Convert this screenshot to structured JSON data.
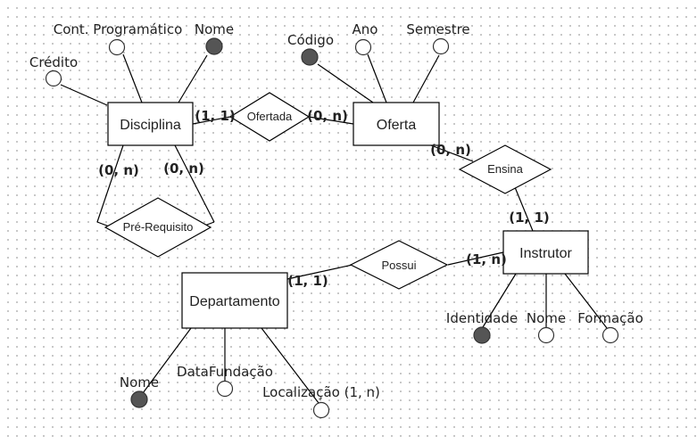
{
  "entities": {
    "disciplina": "Disciplina",
    "oferta": "Oferta",
    "instrutor": "Instrutor",
    "departamento": "Departamento"
  },
  "relationships": {
    "ofertada": "Ofertada",
    "ensina": "Ensina",
    "pre_requisito": "Pré-Requisito",
    "possui": "Possui"
  },
  "attributes": {
    "disciplina_credito": {
      "label": "Crédito",
      "key": false
    },
    "disciplina_conteudo": {
      "label": "Cont. Programático",
      "key": false
    },
    "disciplina_nome": {
      "label": "Nome",
      "key": true
    },
    "oferta_codigo": {
      "label": "Código",
      "key": true
    },
    "oferta_ano": {
      "label": "Ano",
      "key": false
    },
    "oferta_semestre": {
      "label": "Semestre",
      "key": false
    },
    "instrutor_identidade": {
      "label": "Identidade",
      "key": true
    },
    "instrutor_nome": {
      "label": "Nome",
      "key": false
    },
    "instrutor_formacao": {
      "label": "Formação",
      "key": false
    },
    "departamento_nome": {
      "label": "Nome",
      "key": true
    },
    "departamento_datafundacao": {
      "label": "DataFundação",
      "key": false
    },
    "departamento_localizacao": {
      "label": "Localização (1, n)",
      "key": false
    }
  },
  "cardinalities": {
    "disciplina_ofertada": "(1, 1)",
    "ofertada_oferta": "(0, n)",
    "oferta_ensina": "(0, n)",
    "ensina_instrutor": "(1, 1)",
    "prereq_left": "(0, n)",
    "prereq_right": "(0, n)",
    "possui_departamento": "(1, 1)",
    "possui_instrutor": "(1, n)"
  },
  "colors": {
    "key_attribute_fill": "#555555",
    "attribute_fill": "#ffffff",
    "stroke": "#000000"
  }
}
